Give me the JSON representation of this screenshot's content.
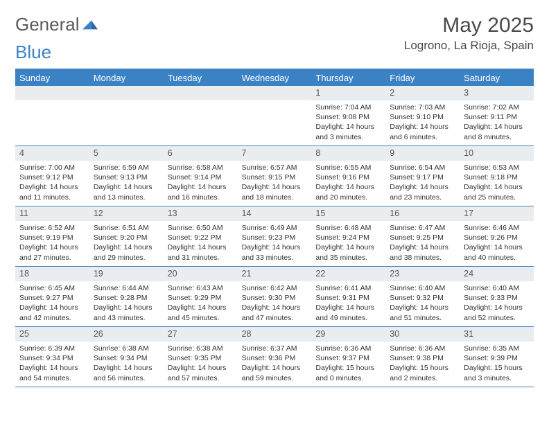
{
  "brand": {
    "part1": "General",
    "part2": "Blue"
  },
  "header": {
    "title": "May 2025",
    "location": "Logrono, La Rioja, Spain"
  },
  "colors": {
    "accent": "#3b82c4",
    "header_gray": "#e9edf0",
    "text": "#333333",
    "title_gray": "#4a4a4a"
  },
  "dayHeaders": [
    "Sunday",
    "Monday",
    "Tuesday",
    "Wednesday",
    "Thursday",
    "Friday",
    "Saturday"
  ],
  "weeks": [
    [
      {
        "n": "",
        "sunrise": "",
        "sunset": "",
        "daylight": ""
      },
      {
        "n": "",
        "sunrise": "",
        "sunset": "",
        "daylight": ""
      },
      {
        "n": "",
        "sunrise": "",
        "sunset": "",
        "daylight": ""
      },
      {
        "n": "",
        "sunrise": "",
        "sunset": "",
        "daylight": ""
      },
      {
        "n": "1",
        "sunrise": "Sunrise: 7:04 AM",
        "sunset": "Sunset: 9:08 PM",
        "daylight": "Daylight: 14 hours and 3 minutes."
      },
      {
        "n": "2",
        "sunrise": "Sunrise: 7:03 AM",
        "sunset": "Sunset: 9:10 PM",
        "daylight": "Daylight: 14 hours and 6 minutes."
      },
      {
        "n": "3",
        "sunrise": "Sunrise: 7:02 AM",
        "sunset": "Sunset: 9:11 PM",
        "daylight": "Daylight: 14 hours and 8 minutes."
      }
    ],
    [
      {
        "n": "4",
        "sunrise": "Sunrise: 7:00 AM",
        "sunset": "Sunset: 9:12 PM",
        "daylight": "Daylight: 14 hours and 11 minutes."
      },
      {
        "n": "5",
        "sunrise": "Sunrise: 6:59 AM",
        "sunset": "Sunset: 9:13 PM",
        "daylight": "Daylight: 14 hours and 13 minutes."
      },
      {
        "n": "6",
        "sunrise": "Sunrise: 6:58 AM",
        "sunset": "Sunset: 9:14 PM",
        "daylight": "Daylight: 14 hours and 16 minutes."
      },
      {
        "n": "7",
        "sunrise": "Sunrise: 6:57 AM",
        "sunset": "Sunset: 9:15 PM",
        "daylight": "Daylight: 14 hours and 18 minutes."
      },
      {
        "n": "8",
        "sunrise": "Sunrise: 6:55 AM",
        "sunset": "Sunset: 9:16 PM",
        "daylight": "Daylight: 14 hours and 20 minutes."
      },
      {
        "n": "9",
        "sunrise": "Sunrise: 6:54 AM",
        "sunset": "Sunset: 9:17 PM",
        "daylight": "Daylight: 14 hours and 23 minutes."
      },
      {
        "n": "10",
        "sunrise": "Sunrise: 6:53 AM",
        "sunset": "Sunset: 9:18 PM",
        "daylight": "Daylight: 14 hours and 25 minutes."
      }
    ],
    [
      {
        "n": "11",
        "sunrise": "Sunrise: 6:52 AM",
        "sunset": "Sunset: 9:19 PM",
        "daylight": "Daylight: 14 hours and 27 minutes."
      },
      {
        "n": "12",
        "sunrise": "Sunrise: 6:51 AM",
        "sunset": "Sunset: 9:20 PM",
        "daylight": "Daylight: 14 hours and 29 minutes."
      },
      {
        "n": "13",
        "sunrise": "Sunrise: 6:50 AM",
        "sunset": "Sunset: 9:22 PM",
        "daylight": "Daylight: 14 hours and 31 minutes."
      },
      {
        "n": "14",
        "sunrise": "Sunrise: 6:49 AM",
        "sunset": "Sunset: 9:23 PM",
        "daylight": "Daylight: 14 hours and 33 minutes."
      },
      {
        "n": "15",
        "sunrise": "Sunrise: 6:48 AM",
        "sunset": "Sunset: 9:24 PM",
        "daylight": "Daylight: 14 hours and 35 minutes."
      },
      {
        "n": "16",
        "sunrise": "Sunrise: 6:47 AM",
        "sunset": "Sunset: 9:25 PM",
        "daylight": "Daylight: 14 hours and 38 minutes."
      },
      {
        "n": "17",
        "sunrise": "Sunrise: 6:46 AM",
        "sunset": "Sunset: 9:26 PM",
        "daylight": "Daylight: 14 hours and 40 minutes."
      }
    ],
    [
      {
        "n": "18",
        "sunrise": "Sunrise: 6:45 AM",
        "sunset": "Sunset: 9:27 PM",
        "daylight": "Daylight: 14 hours and 42 minutes."
      },
      {
        "n": "19",
        "sunrise": "Sunrise: 6:44 AM",
        "sunset": "Sunset: 9:28 PM",
        "daylight": "Daylight: 14 hours and 43 minutes."
      },
      {
        "n": "20",
        "sunrise": "Sunrise: 6:43 AM",
        "sunset": "Sunset: 9:29 PM",
        "daylight": "Daylight: 14 hours and 45 minutes."
      },
      {
        "n": "21",
        "sunrise": "Sunrise: 6:42 AM",
        "sunset": "Sunset: 9:30 PM",
        "daylight": "Daylight: 14 hours and 47 minutes."
      },
      {
        "n": "22",
        "sunrise": "Sunrise: 6:41 AM",
        "sunset": "Sunset: 9:31 PM",
        "daylight": "Daylight: 14 hours and 49 minutes."
      },
      {
        "n": "23",
        "sunrise": "Sunrise: 6:40 AM",
        "sunset": "Sunset: 9:32 PM",
        "daylight": "Daylight: 14 hours and 51 minutes."
      },
      {
        "n": "24",
        "sunrise": "Sunrise: 6:40 AM",
        "sunset": "Sunset: 9:33 PM",
        "daylight": "Daylight: 14 hours and 52 minutes."
      }
    ],
    [
      {
        "n": "25",
        "sunrise": "Sunrise: 6:39 AM",
        "sunset": "Sunset: 9:34 PM",
        "daylight": "Daylight: 14 hours and 54 minutes."
      },
      {
        "n": "26",
        "sunrise": "Sunrise: 6:38 AM",
        "sunset": "Sunset: 9:34 PM",
        "daylight": "Daylight: 14 hours and 56 minutes."
      },
      {
        "n": "27",
        "sunrise": "Sunrise: 6:38 AM",
        "sunset": "Sunset: 9:35 PM",
        "daylight": "Daylight: 14 hours and 57 minutes."
      },
      {
        "n": "28",
        "sunrise": "Sunrise: 6:37 AM",
        "sunset": "Sunset: 9:36 PM",
        "daylight": "Daylight: 14 hours and 59 minutes."
      },
      {
        "n": "29",
        "sunrise": "Sunrise: 6:36 AM",
        "sunset": "Sunset: 9:37 PM",
        "daylight": "Daylight: 15 hours and 0 minutes."
      },
      {
        "n": "30",
        "sunrise": "Sunrise: 6:36 AM",
        "sunset": "Sunset: 9:38 PM",
        "daylight": "Daylight: 15 hours and 2 minutes."
      },
      {
        "n": "31",
        "sunrise": "Sunrise: 6:35 AM",
        "sunset": "Sunset: 9:39 PM",
        "daylight": "Daylight: 15 hours and 3 minutes."
      }
    ]
  ]
}
